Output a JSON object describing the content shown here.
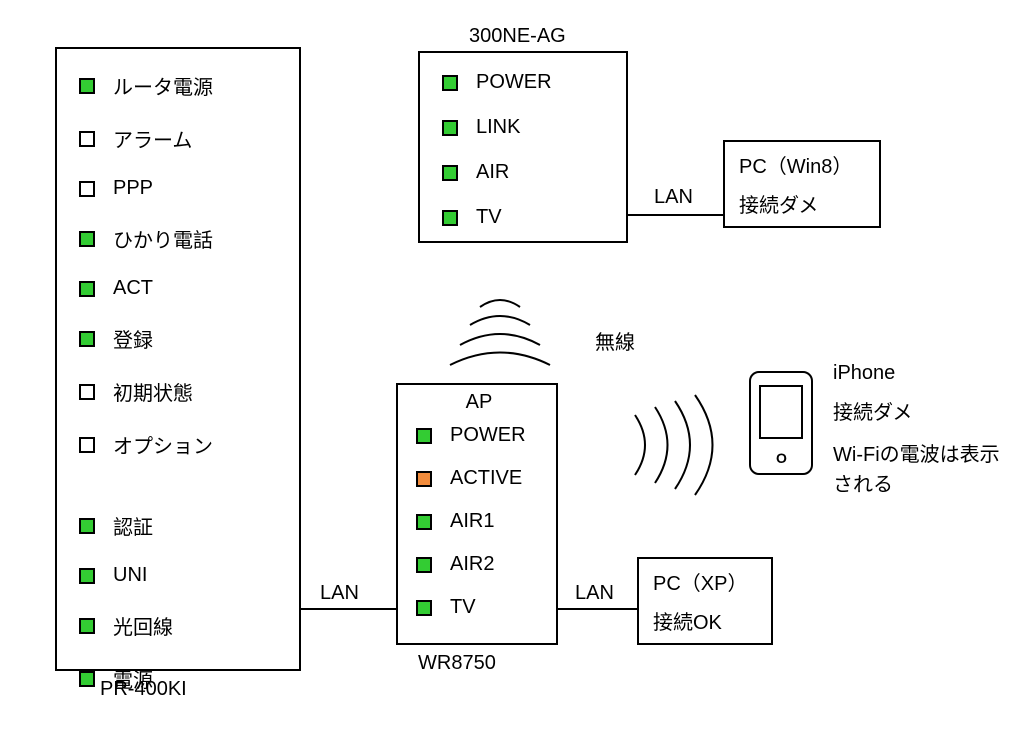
{
  "colors": {
    "green": "#33cc33",
    "orange": "#f28c3c",
    "off": "#ffffff",
    "stroke": "#000000",
    "bg": "#ffffff"
  },
  "router": {
    "label": "PR-400KI",
    "leds": [
      {
        "label": "ルータ電源",
        "color": "#33cc33"
      },
      {
        "label": "アラーム",
        "color": "#ffffff"
      },
      {
        "label": "PPP",
        "color": "#ffffff"
      },
      {
        "label": "ひかり電話",
        "color": "#33cc33"
      },
      {
        "label": "ACT",
        "color": "#33cc33"
      },
      {
        "label": "登録",
        "color": "#33cc33"
      },
      {
        "label": "初期状態",
        "color": "#ffffff"
      },
      {
        "label": "オプション",
        "color": "#ffffff"
      },
      {
        "label": "認証",
        "color": "#33cc33"
      },
      {
        "label": "UNI",
        "color": "#33cc33"
      },
      {
        "label": "光回線",
        "color": "#33cc33"
      },
      {
        "label": "電源",
        "color": "#33cc33"
      }
    ]
  },
  "ne300": {
    "label": "300NE-AG",
    "leds": [
      {
        "label": "POWER",
        "color": "#33cc33"
      },
      {
        "label": "LINK",
        "color": "#33cc33"
      },
      {
        "label": "AIR",
        "color": "#33cc33"
      },
      {
        "label": "TV",
        "color": "#33cc33"
      }
    ]
  },
  "ap": {
    "header": "AP",
    "label": "WR8750",
    "leds": [
      {
        "label": "POWER",
        "color": "#33cc33"
      },
      {
        "label": "ACTIVE",
        "color": "#f28c3c"
      },
      {
        "label": "AIR1",
        "color": "#33cc33"
      },
      {
        "label": "AIR2",
        "color": "#33cc33"
      },
      {
        "label": "TV",
        "color": "#33cc33"
      }
    ]
  },
  "pc_win8": {
    "title": "PC（Win8）",
    "status": "接続ダメ"
  },
  "pc_xp": {
    "title": "PC（XP）",
    "status": "接続OK"
  },
  "iphone": {
    "title": "iPhone",
    "status": "接続ダメ",
    "note": "Wi-Fiの電波は表示される"
  },
  "labels": {
    "lan1": "LAN",
    "lan2": "LAN",
    "lan3": "LAN",
    "wireless": "無線"
  }
}
